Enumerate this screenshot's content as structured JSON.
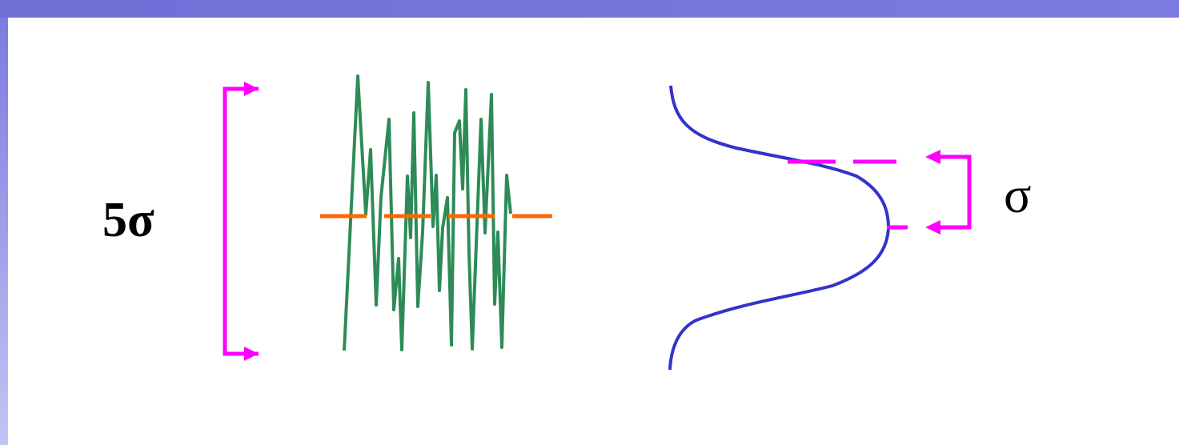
{
  "labels": {
    "five_sigma": "5σ",
    "sigma": "σ"
  },
  "colors": {
    "header_bar": "#6f6fd6",
    "signal": "#2e8b57",
    "mean_line": "#ff6600",
    "bracket": "#ff00ff",
    "distribution_curve": "#3333cc"
  },
  "signal": {
    "description_values": [
      0.02,
      0.98,
      0.52,
      0.78,
      0.6,
      0.85,
      0.15,
      0.75,
      0.2,
      0.9,
      0.3,
      0.85,
      0.1,
      0.5,
      0.95,
      0.4,
      0.2,
      0.55,
      0.05,
      0.75,
      0.85,
      0.35,
      0.82,
      0.7,
      0.05,
      0.88,
      0.38,
      0.6,
      0.02,
      0.52
    ]
  }
}
